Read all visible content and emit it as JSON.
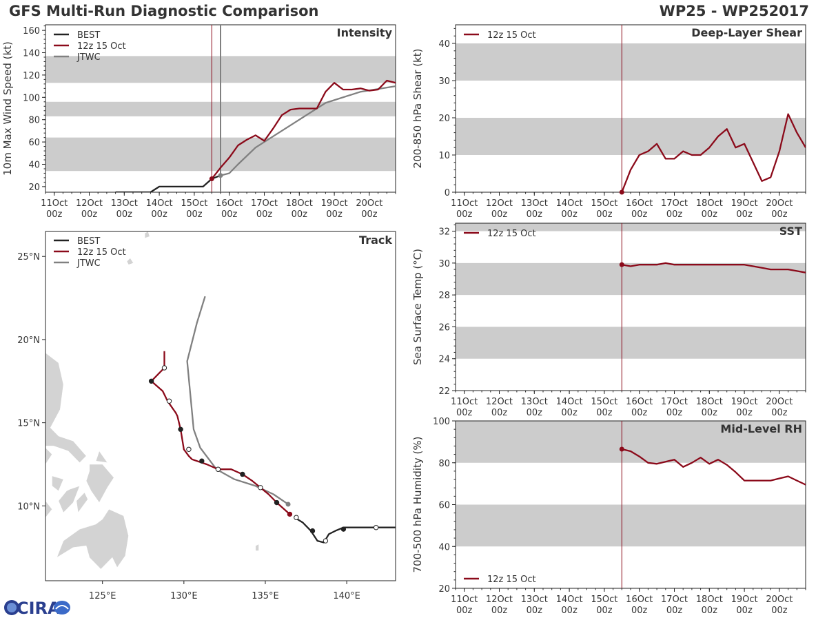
{
  "header": {
    "title": "GFS Multi-Run Diagnostic Comparison",
    "storm_id": "WP25 - WP252017"
  },
  "logo": {
    "text": "CIRA"
  },
  "colors": {
    "best": "#222222",
    "gfs": "#8b0a1a",
    "jtwc": "#808080",
    "band": "#cccccc",
    "land": "#d3d3d3"
  },
  "time_axis": {
    "ticks": [
      {
        "day": "11Oct",
        "hour": "00z",
        "t": 0
      },
      {
        "day": "12Oct",
        "hour": "00z",
        "t": 24
      },
      {
        "day": "13Oct",
        "hour": "00z",
        "t": 48
      },
      {
        "day": "14Oct",
        "hour": "00z",
        "t": 72
      },
      {
        "day": "15Oct",
        "hour": "00z",
        "t": 96
      },
      {
        "day": "16Oct",
        "hour": "00z",
        "t": 120
      },
      {
        "day": "17Oct",
        "hour": "00z",
        "t": 144
      },
      {
        "day": "18Oct",
        "hour": "00z",
        "t": 168
      },
      {
        "day": "19Oct",
        "hour": "00z",
        "t": 192
      },
      {
        "day": "20Oct",
        "hour": "00z",
        "t": 216
      }
    ],
    "range_hours": [
      -6,
      234
    ],
    "init_time_hours": 108
  },
  "chart_data": [
    {
      "id": "intensity",
      "type": "line",
      "title": "Intensity",
      "ylabel": "10m Max Wind Speed (kt)",
      "ylim": [
        15,
        165
      ],
      "yticks": [
        20,
        40,
        60,
        80,
        100,
        120,
        140,
        160
      ],
      "bands": [
        [
          34,
          64
        ],
        [
          83,
          96
        ],
        [
          113,
          137
        ]
      ],
      "jtwc_time_hours": 114,
      "legend": [
        "BEST",
        "12z 15 Oct",
        "JTWC"
      ],
      "series": [
        {
          "name": "BEST",
          "key": "best",
          "t": [
            42,
            48,
            54,
            60,
            66,
            72,
            78,
            84,
            90,
            96,
            102,
            108,
            114
          ],
          "v": [
            15,
            15,
            15,
            15,
            15,
            20,
            20,
            20,
            20,
            20,
            20,
            27,
            30
          ]
        },
        {
          "name": "12z 15 Oct",
          "key": "gfs",
          "t": [
            108,
            114,
            120,
            126,
            132,
            138,
            144,
            150,
            156,
            162,
            168,
            174,
            180,
            186,
            192,
            198,
            204,
            210,
            216,
            222,
            228,
            234
          ],
          "v": [
            27,
            37,
            46,
            57,
            62,
            66,
            61,
            72,
            84,
            89,
            90,
            90,
            90,
            105,
            113,
            107,
            107,
            108,
            106,
            107,
            115,
            113
          ]
        },
        {
          "name": "JTWC",
          "key": "jtwc",
          "t": [
            114,
            120,
            126,
            138,
            162,
            186,
            210,
            234
          ],
          "v": [
            30,
            32,
            40,
            55,
            75,
            95,
            105,
            110
          ]
        }
      ]
    },
    {
      "id": "shear",
      "type": "line",
      "title": "Deep-Layer Shear",
      "ylabel": "200-850 hPa Shear (kt)",
      "ylim": [
        0,
        45
      ],
      "yticks": [
        0,
        10,
        20,
        30,
        40
      ],
      "bands": [
        [
          10,
          20
        ],
        [
          30,
          40
        ]
      ],
      "legend": [
        "12z 15 Oct"
      ],
      "series": [
        {
          "name": "12z 15 Oct",
          "key": "gfs",
          "t": [
            108,
            114,
            120,
            126,
            132,
            138,
            144,
            150,
            156,
            162,
            168,
            174,
            180,
            186,
            192,
            198,
            204,
            210,
            216,
            222,
            228,
            234
          ],
          "v": [
            0,
            6,
            10,
            11,
            13,
            9,
            9,
            11,
            10,
            10,
            12,
            15,
            17,
            12,
            13,
            8,
            3,
            4,
            11,
            21,
            16,
            12
          ]
        }
      ]
    },
    {
      "id": "sst",
      "type": "line",
      "title": "SST",
      "ylabel": "Sea Surface Temp (°C)",
      "ylim": [
        22,
        32.5
      ],
      "yticks": [
        22,
        24,
        26,
        28,
        30,
        32
      ],
      "bands": [
        [
          24,
          26
        ],
        [
          28,
          30
        ],
        [
          32,
          32.5
        ]
      ],
      "legend": [
        "12z 15 Oct"
      ],
      "series": [
        {
          "name": "12z 15 Oct",
          "key": "gfs",
          "t": [
            108,
            114,
            120,
            126,
            132,
            138,
            144,
            150,
            156,
            162,
            168,
            174,
            180,
            186,
            192,
            198,
            204,
            210,
            216,
            222,
            228,
            234
          ],
          "v": [
            29.9,
            29.8,
            29.9,
            29.9,
            29.9,
            30.0,
            29.9,
            29.9,
            29.9,
            29.9,
            29.9,
            29.9,
            29.9,
            29.9,
            29.9,
            29.8,
            29.7,
            29.6,
            29.6,
            29.6,
            29.5,
            29.4
          ]
        }
      ]
    },
    {
      "id": "rh",
      "type": "line",
      "title": "Mid-Level RH",
      "ylabel": "700-500 hPa Humidity (%)",
      "ylim": [
        20,
        100
      ],
      "yticks": [
        20,
        40,
        60,
        80,
        100
      ],
      "bands": [
        [
          40,
          60
        ],
        [
          80,
          100
        ]
      ],
      "legend": [
        "12z 15 Oct"
      ],
      "series": [
        {
          "name": "12z 15 Oct",
          "key": "gfs",
          "t": [
            108,
            114,
            120,
            126,
            132,
            138,
            144,
            150,
            156,
            162,
            168,
            174,
            180,
            186,
            192,
            198,
            204,
            210,
            216,
            222,
            228,
            234
          ],
          "v": [
            86.5,
            85.5,
            83,
            80,
            79.5,
            80.5,
            81.5,
            78,
            80,
            82.5,
            79.5,
            81.5,
            79,
            75.5,
            71.5,
            71.5,
            71.5,
            71.5,
            72.5,
            73.5,
            71.5,
            69.5
          ]
        }
      ]
    },
    {
      "id": "track",
      "type": "line",
      "title": "Track",
      "xlim": [
        121.5,
        143
      ],
      "ylim": [
        5.5,
        26.5
      ],
      "xticks": [
        {
          "v": 125,
          "label": "125°E"
        },
        {
          "v": 130,
          "label": "130°E"
        },
        {
          "v": 135,
          "label": "135°E"
        },
        {
          "v": 140,
          "label": "140°E"
        }
      ],
      "yticks": [
        {
          "v": 10,
          "label": "10°N"
        },
        {
          "v": 15,
          "label": "15°N"
        },
        {
          "v": 20,
          "label": "20°N"
        },
        {
          "v": 25,
          "label": "25°N"
        }
      ],
      "legend": [
        "BEST",
        "12z 15 Oct",
        "JTWC"
      ],
      "series": [
        {
          "name": "BEST",
          "key": "best",
          "lon": [
            143.0,
            141.9,
            139.8,
            139.3,
            138.9,
            138.6,
            138.2,
            137.8,
            137.3,
            136.8
          ],
          "lat": [
            8.7,
            8.7,
            8.7,
            8.5,
            8.3,
            7.8,
            7.9,
            8.5,
            9.0,
            9.3
          ]
        },
        {
          "name": "12z 15 Oct",
          "key": "gfs",
          "lon": [
            136.5,
            135.7,
            135.2,
            134.7,
            134.2,
            133.6,
            132.9,
            132.1,
            131.4,
            130.5,
            130.3,
            130.0,
            129.8,
            129.6,
            129.5,
            129.0,
            128.7,
            128.0,
            128.5,
            128.8,
            128.8
          ],
          "lat": [
            9.5,
            10.2,
            10.7,
            11.1,
            11.5,
            11.9,
            12.2,
            12.2,
            12.5,
            12.8,
            13.0,
            13.4,
            14.6,
            15.4,
            15.6,
            16.3,
            16.9,
            17.5,
            18.0,
            18.3,
            19.3
          ],
          "markers": [
            {
              "lon": 136.5,
              "lat": 9.5,
              "filled": true
            },
            {
              "lon": 135.7,
              "lat": 10.2,
              "filled": true
            },
            {
              "lon": 134.7,
              "lat": 11.1,
              "filled": false
            },
            {
              "lon": 133.6,
              "lat": 11.9,
              "filled": true
            },
            {
              "lon": 132.1,
              "lat": 12.2,
              "filled": false
            },
            {
              "lon": 131.1,
              "lat": 12.7,
              "filled": true
            },
            {
              "lon": 130.3,
              "lat": 13.4,
              "filled": false
            },
            {
              "lon": 129.8,
              "lat": 14.6,
              "filled": true
            },
            {
              "lon": 129.1,
              "lat": 16.3,
              "filled": false
            },
            {
              "lon": 128.0,
              "lat": 17.5,
              "filled": true
            },
            {
              "lon": 128.8,
              "lat": 18.3,
              "filled": false
            }
          ]
        },
        {
          "name": "JTWC",
          "key": "jtwc",
          "lon": [
            136.4,
            135.5,
            134.4,
            133.1,
            132.0,
            131.0,
            130.6,
            130.2,
            130.8,
            131.3
          ],
          "lat": [
            10.1,
            10.7,
            11.2,
            11.6,
            12.2,
            13.5,
            14.6,
            18.7,
            21.0,
            22.6
          ]
        }
      ],
      "best_markers": [
        {
          "lon": 141.8,
          "lat": 8.7,
          "filled": false
        },
        {
          "lon": 139.8,
          "lat": 8.6,
          "filled": true
        },
        {
          "lon": 138.7,
          "lat": 7.9,
          "filled": false
        },
        {
          "lon": 137.9,
          "lat": 8.5,
          "filled": true
        },
        {
          "lon": 136.9,
          "lat": 9.3,
          "filled": false
        }
      ]
    }
  ]
}
